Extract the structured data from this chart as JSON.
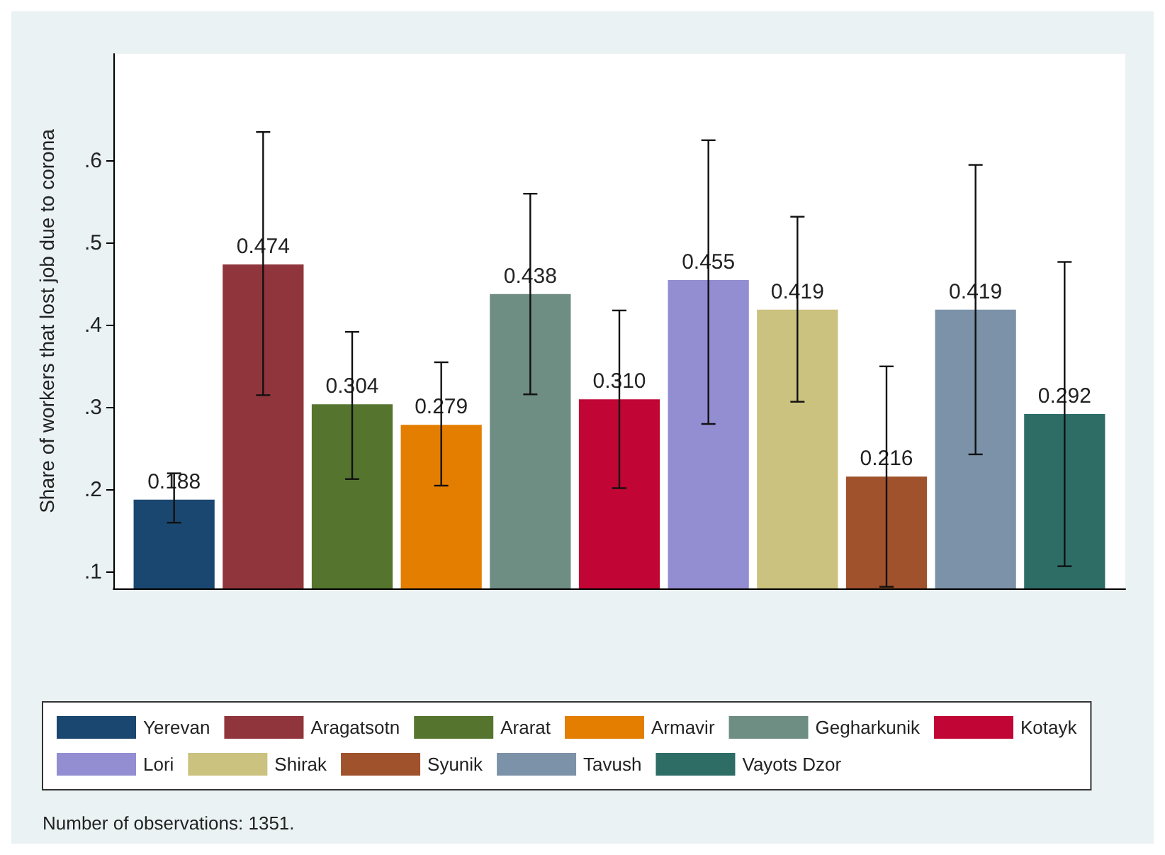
{
  "chart_data": {
    "type": "bar",
    "ylabel": "Share of workers that lost job due to corona",
    "categories": [
      null
    ],
    "series": [
      {
        "name": "Yerevan",
        "color": "#1a476f",
        "values": [
          0.188
        ],
        "errors": [
          [
            0.16,
            0.22
          ]
        ],
        "value_labels": [
          "0.188"
        ]
      },
      {
        "name": "Aragatsotn",
        "color": "#90353b",
        "values": [
          0.474
        ],
        "errors": [
          [
            0.315,
            0.635
          ]
        ],
        "value_labels": [
          "0.474"
        ]
      },
      {
        "name": "Ararat",
        "color": "#55752f",
        "values": [
          0.304
        ],
        "errors": [
          [
            0.213,
            0.392
          ]
        ],
        "value_labels": [
          "0.304"
        ]
      },
      {
        "name": "Armavir",
        "color": "#e37e00",
        "values": [
          0.279
        ],
        "errors": [
          [
            0.205,
            0.355
          ]
        ],
        "value_labels": [
          "0.279"
        ]
      },
      {
        "name": "Gegharkunik",
        "color": "#6e8e84",
        "values": [
          0.438
        ],
        "errors": [
          [
            0.316,
            0.56
          ]
        ],
        "value_labels": [
          "0.438"
        ]
      },
      {
        "name": "Kotayk",
        "color": "#c10534",
        "values": [
          0.31
        ],
        "errors": [
          [
            0.202,
            0.418
          ]
        ],
        "value_labels": [
          "0.310"
        ]
      },
      {
        "name": "Lori",
        "color": "#938dd2",
        "values": [
          0.455
        ],
        "errors": [
          [
            0.28,
            0.625
          ]
        ],
        "value_labels": [
          "0.455"
        ]
      },
      {
        "name": "Shirak",
        "color": "#cac27e",
        "values": [
          0.419
        ],
        "errors": [
          [
            0.307,
            0.532
          ]
        ],
        "value_labels": [
          "0.419"
        ]
      },
      {
        "name": "Syunik",
        "color": "#a0522d",
        "values": [
          0.216
        ],
        "errors": [
          [
            0.082,
            0.35
          ]
        ],
        "value_labels": [
          "0.216"
        ]
      },
      {
        "name": "Tavush",
        "color": "#7b92a8",
        "values": [
          0.419
        ],
        "errors": [
          [
            0.243,
            0.595
          ]
        ],
        "value_labels": [
          "0.419"
        ]
      },
      {
        "name": "Vayots Dzor",
        "color": "#2d6d66",
        "values": [
          0.292
        ],
        "errors": [
          [
            0.107,
            0.477
          ]
        ],
        "value_labels": [
          "0.292"
        ]
      }
    ],
    "ylim": [
      0.08,
      0.73
    ],
    "yticks": [
      {
        "value": 0.1,
        "label": ".1"
      },
      {
        "value": 0.2,
        "label": ".2"
      },
      {
        "value": 0.3,
        "label": ".3"
      },
      {
        "value": 0.4,
        "label": ".4"
      },
      {
        "value": 0.5,
        "label": ".5"
      },
      {
        "value": 0.6,
        "label": ".6"
      }
    ],
    "legend": "bottom",
    "grid": false,
    "annotations": [
      "Number of observations: 1351."
    ]
  }
}
